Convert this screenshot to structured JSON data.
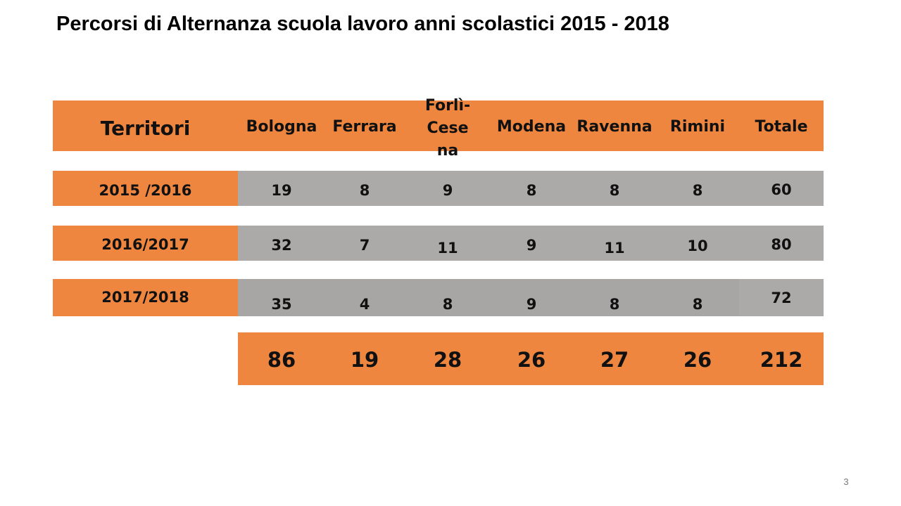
{
  "title": "Percorsi di Alternanza scuola lavoro anni scolastici 2015 - 2018",
  "table": {
    "header": [
      "Territori",
      "Bologna",
      "Ferrara",
      "Forlì-Cesena",
      "Modena",
      "Ravenna",
      "Rimini",
      "Totale"
    ],
    "rows": [
      {
        "label": "2015 /2016",
        "values": [
          "19",
          "8",
          "9",
          "8",
          "8",
          "8"
        ],
        "total": "60"
      },
      {
        "label": "2016/2017",
        "values": [
          "32",
          "7",
          "11",
          "9",
          "11",
          "10"
        ],
        "total": "80"
      },
      {
        "label": "2017/2018",
        "values": [
          "35",
          "4",
          "8",
          "9",
          "8",
          "8"
        ],
        "total": "72"
      }
    ],
    "totals": [
      "86",
      "19",
      "28",
      "26",
      "27",
      "26",
      "212"
    ]
  },
  "colors": {
    "accent": "#ee8640",
    "row_fill": "#aca9a9"
  },
  "page_number": "3"
}
